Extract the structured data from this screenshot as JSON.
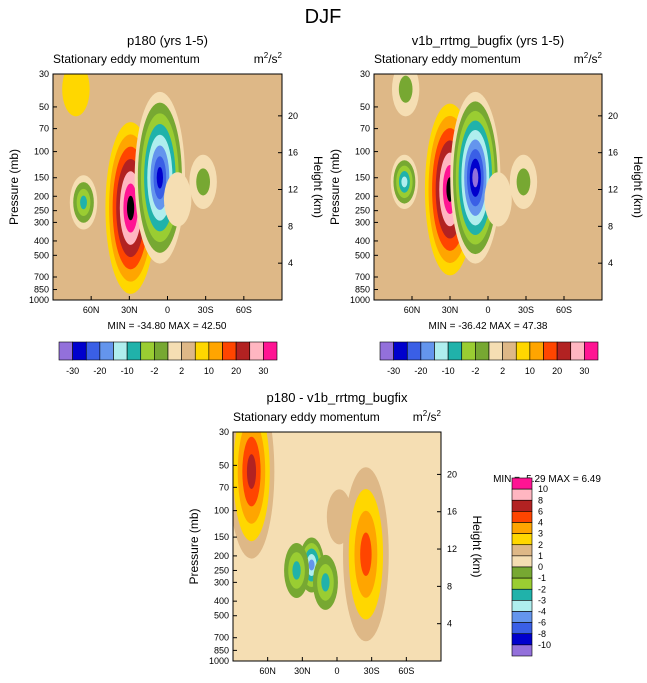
{
  "figure_title": "DJF",
  "colors": [
    "#9370db",
    "#0000cd",
    "#3a5fe6",
    "#6495ed",
    "#afeeee",
    "#20b2aa",
    "#9acd32",
    "#77a832",
    "#f5deb3",
    "#deb887",
    "#ffd700",
    "#ffa500",
    "#ff4500",
    "#b22222",
    "#ffb6c1",
    "#ff1493"
  ],
  "chart_data": [
    {
      "type": "contour",
      "title": "p180 (yrs 1-5)",
      "subtitle": "Stationary eddy momentum",
      "units": "m²/s²",
      "units_base": "m",
      "units_exp_1": "2",
      "units_mid": "/s",
      "units_exp_2": "2",
      "ylabel": "Pressure (mb)",
      "ylabel_right": "Height (km)",
      "xlim": [
        90,
        -90
      ],
      "ylim": [
        1000,
        30
      ],
      "x_ticks": [
        "60N",
        "30N",
        "0",
        "30S",
        "60S"
      ],
      "x_tick_values": [
        60,
        30,
        0,
        -30,
        -60
      ],
      "y_ticks": [
        "30",
        "50",
        "70",
        "100",
        "150",
        "200",
        "250",
        "300",
        "400",
        "500",
        "700",
        "850",
        "1000"
      ],
      "y_tick_values": [
        30,
        50,
        70,
        100,
        150,
        200,
        250,
        300,
        400,
        500,
        700,
        850,
        1000
      ],
      "height_ticks": [
        "20",
        "16",
        "12",
        "8",
        "4"
      ],
      "height_tick_values": [
        20,
        16,
        12,
        8,
        4
      ],
      "min_label": "MIN = -34.80",
      "max_label": "MAX = 42.50",
      "min": -34.8,
      "max": 42.5,
      "features": [
        {
          "lat": 29,
          "p": 240,
          "value": 42.5
        },
        {
          "lat": 6,
          "p": 150,
          "value": -34.8
        },
        {
          "lat": 66,
          "p": 220,
          "value": -14
        },
        {
          "lat": 72,
          "p": 38,
          "value": 3
        },
        {
          "lat": -8,
          "p": 210,
          "value": -2
        },
        {
          "lat": -28,
          "p": 160,
          "value": -3
        }
      ]
    },
    {
      "type": "contour",
      "title": "v1b_rrtmg_bugfix (yrs 1-5)",
      "subtitle": "Stationary eddy momentum",
      "units": "m²/s²",
      "units_base": "m",
      "units_exp_1": "2",
      "units_mid": "/s",
      "units_exp_2": "2",
      "ylabel": "Pressure (mb)",
      "ylabel_right": "Height (km)",
      "xlim": [
        90,
        -90
      ],
      "ylim": [
        1000,
        30
      ],
      "x_ticks": [
        "60N",
        "30N",
        "0",
        "30S",
        "60S"
      ],
      "x_tick_values": [
        60,
        30,
        0,
        -30,
        -60
      ],
      "y_ticks": [
        "30",
        "50",
        "70",
        "100",
        "150",
        "200",
        "250",
        "300",
        "400",
        "500",
        "700",
        "850",
        "1000"
      ],
      "y_tick_values": [
        30,
        50,
        70,
        100,
        150,
        200,
        250,
        300,
        400,
        500,
        700,
        850,
        1000
      ],
      "height_ticks": [
        "20",
        "16",
        "12",
        "8",
        "4"
      ],
      "height_tick_values": [
        20,
        16,
        12,
        8,
        4
      ],
      "min_label": "MIN = -36.42",
      "max_label": "MAX = 47.38",
      "min": -36.42,
      "max": 47.38,
      "features": [
        {
          "lat": 30,
          "p": 180,
          "value": 47.38
        },
        {
          "lat": 10,
          "p": 150,
          "value": -36.42
        },
        {
          "lat": 66,
          "p": 160,
          "value": -16
        },
        {
          "lat": 65,
          "p": 38,
          "value": -4
        },
        {
          "lat": -8,
          "p": 210,
          "value": -2
        },
        {
          "lat": -28,
          "p": 160,
          "value": -3
        }
      ]
    },
    {
      "type": "contour",
      "title": "p180 - v1b_rrtmg_bugfix",
      "subtitle": "Stationary eddy momentum",
      "units": "m²/s²",
      "units_base": "m",
      "units_exp_1": "2",
      "units_mid": "/s",
      "units_exp_2": "2",
      "ylabel": "Pressure (mb)",
      "ylabel_right": "Height (km)",
      "xlim": [
        90,
        -90
      ],
      "ylim": [
        1000,
        30
      ],
      "x_ticks": [
        "60N",
        "30N",
        "0",
        "30S",
        "60S"
      ],
      "x_tick_values": [
        60,
        30,
        0,
        -30,
        -60
      ],
      "y_ticks": [
        "30",
        "50",
        "70",
        "100",
        "150",
        "200",
        "250",
        "300",
        "400",
        "500",
        "700",
        "850",
        "1000"
      ],
      "y_tick_values": [
        30,
        50,
        70,
        100,
        150,
        200,
        250,
        300,
        400,
        500,
        700,
        850,
        1000
      ],
      "height_ticks": [
        "20",
        "16",
        "12",
        "8",
        "4"
      ],
      "height_tick_values": [
        20,
        16,
        12,
        8,
        4
      ],
      "min_label": "MIN =  -5.29",
      "max_label": "MAX =   6.49",
      "min": -5.29,
      "max": 6.49,
      "features": [
        {
          "lat": 74,
          "p": 55,
          "value": 6.49
        },
        {
          "lat": -25,
          "p": 195,
          "value": 4.5
        },
        {
          "lat": 22,
          "p": 230,
          "value": -5.29
        },
        {
          "lat": 35,
          "p": 250,
          "value": -3
        },
        {
          "lat": 10,
          "p": 300,
          "value": -2.5
        },
        {
          "lat": -2,
          "p": 110,
          "value": 1.5
        }
      ]
    }
  ],
  "colorbars": [
    {
      "orientation": "horizontal",
      "levels": [
        -35,
        -30,
        -25,
        -20,
        -15,
        -10,
        -5,
        -2,
        0,
        2,
        5,
        10,
        15,
        20,
        25,
        30
      ],
      "labels": [
        "-30",
        "-20",
        "-10",
        "-2",
        "2",
        "10",
        "20",
        "30"
      ]
    },
    {
      "orientation": "horizontal",
      "levels": [
        -35,
        -30,
        -25,
        -20,
        -15,
        -10,
        -5,
        -2,
        0,
        2,
        5,
        10,
        15,
        20,
        25,
        30
      ],
      "labels": [
        "-30",
        "-20",
        "-10",
        "-2",
        "2",
        "10",
        "20",
        "30"
      ]
    },
    {
      "orientation": "vertical",
      "levels": [
        -10,
        -8,
        -6,
        -4,
        -3,
        -2,
        -1,
        0,
        1,
        2,
        3,
        4,
        6,
        8,
        10
      ],
      "labels": [
        "10",
        "8",
        "6",
        "4",
        "3",
        "2",
        "1",
        "0",
        "-1",
        "-2",
        "-3",
        "-4",
        "-6",
        "-8",
        "-10"
      ]
    }
  ]
}
